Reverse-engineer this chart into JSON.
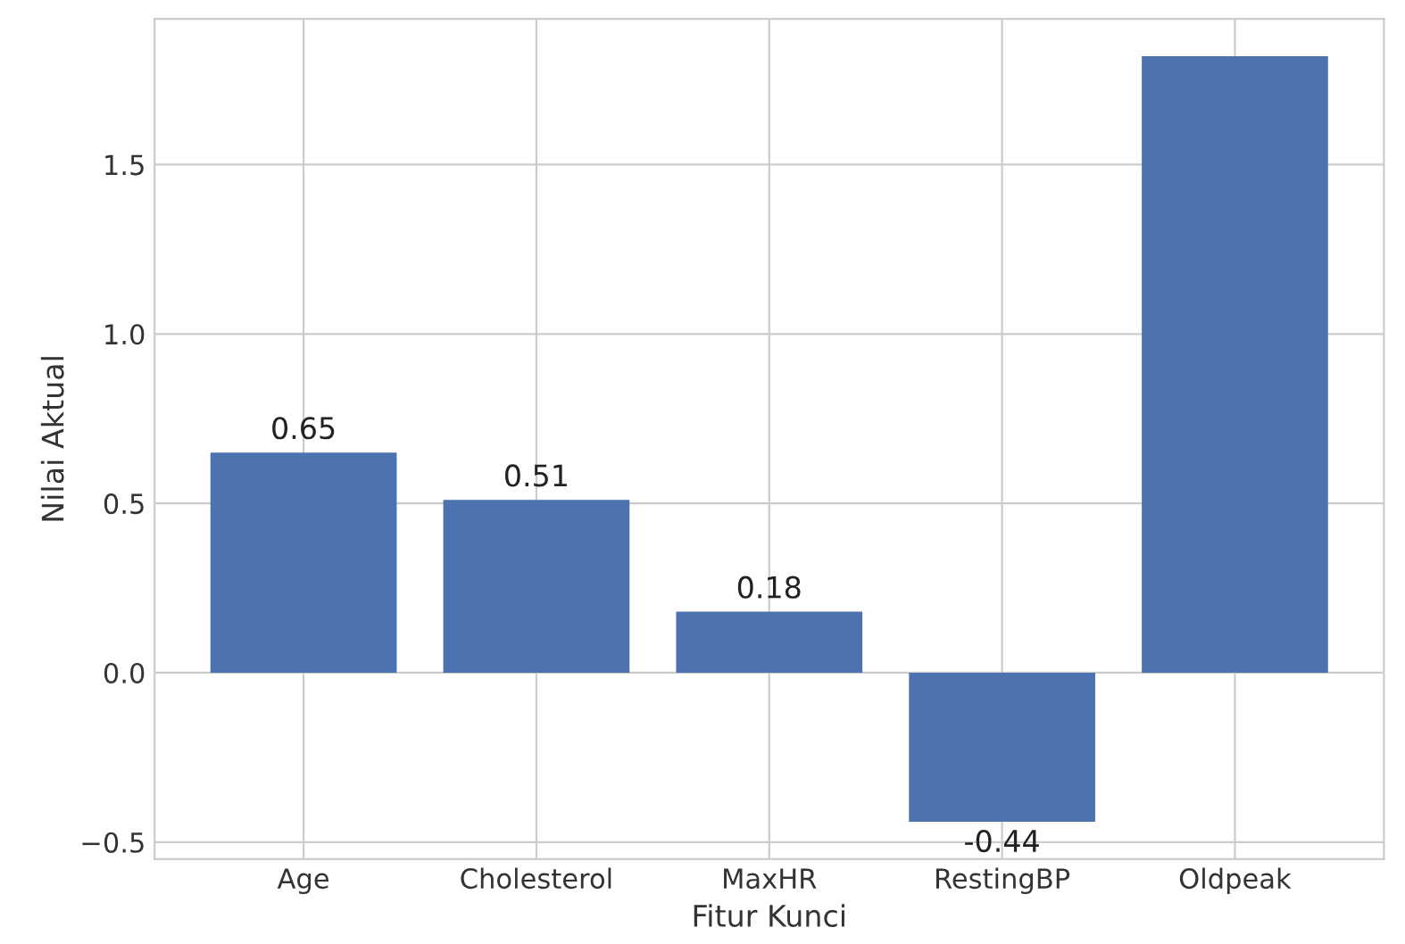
{
  "chart_data": {
    "type": "bar",
    "xlabel": "Fitur Kunci",
    "ylabel": "Nilai Aktual",
    "categories": [
      "Age",
      "Cholesterol",
      "MaxHR",
      "RestingBP",
      "Oldpeak"
    ],
    "values": [
      0.65,
      0.51,
      0.18,
      -0.44,
      1.82
    ],
    "value_labels": [
      "0.65",
      "0.51",
      "0.18",
      "-0.44",
      null
    ],
    "color": "#4c72b0",
    "ylim": [
      -0.55,
      1.93
    ],
    "yticks": [
      {
        "value": -0.5,
        "label": "−0.5"
      },
      "0.0",
      0.5,
      {
        "value": 1.0,
        "label": "1.0"
      },
      1.5
    ],
    "grid": true
  }
}
